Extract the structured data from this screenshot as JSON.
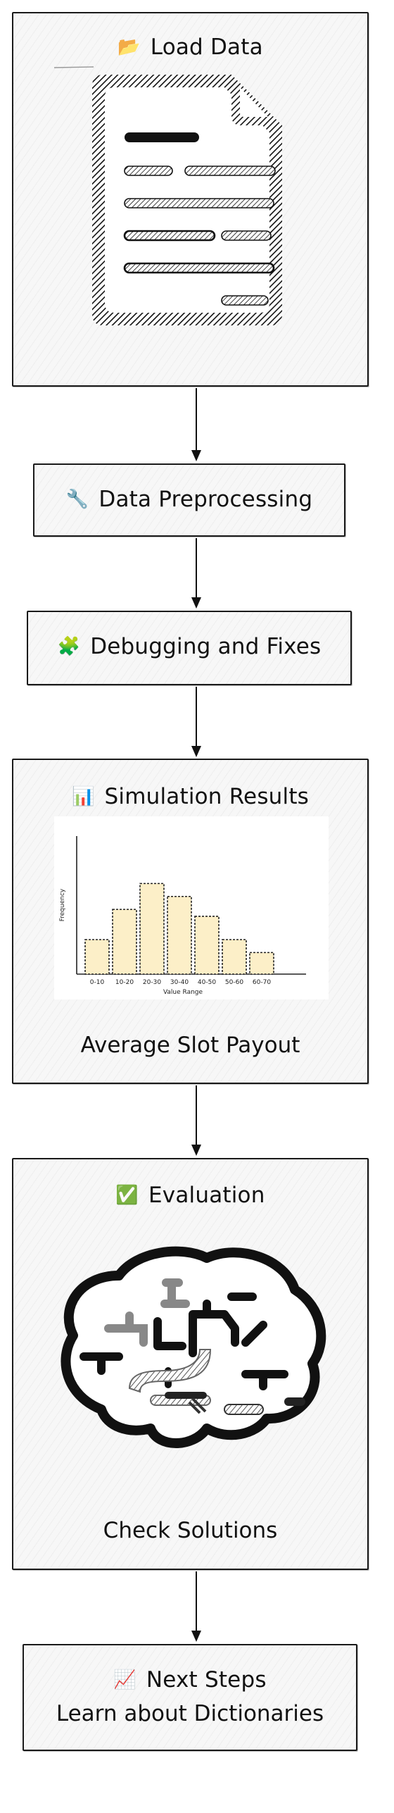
{
  "nodes": {
    "load_data": {
      "icon": "📂",
      "label": "Load Data",
      "icon_name": "folder-icon"
    },
    "preprocessing": {
      "icon": "🔧",
      "label": "Data Preprocessing",
      "icon_name": "wrench-icon"
    },
    "debugging": {
      "icon": "🧩",
      "label": "Debugging and Fixes",
      "icon_name": "puzzle-piece-icon"
    },
    "simulation": {
      "icon": "📊",
      "label": "Simulation Results",
      "caption": "Average Slot Payout",
      "icon_name": "bar-chart-icon"
    },
    "evaluation": {
      "icon": "✅",
      "label": "Evaluation",
      "caption": "Check Solutions",
      "icon_name": "check-mark-icon"
    },
    "next_steps": {
      "icon": "📈",
      "label": "Next Steps",
      "caption": "Learn about Dictionaries",
      "icon_name": "chart-increasing-icon"
    }
  },
  "illustrations": {
    "load_data": "document-icon",
    "evaluation": "brain-icon"
  },
  "colors": {
    "box_border": "#1a1a1a",
    "box_fill": "#f7f7f7",
    "bar_fill": "#fcefc8",
    "line": "#111111"
  },
  "chart_data": {
    "type": "bar",
    "categories": [
      "0-10",
      "10-20",
      "20-30",
      "30-40",
      "40-50",
      "50-60",
      "60-70"
    ],
    "values": [
      4,
      7.5,
      10.5,
      9,
      6.7,
      4,
      2.5
    ],
    "title": "",
    "xlabel": "Value Range",
    "ylabel": "Frequency",
    "ylim": [
      0,
      16
    ],
    "grid": false
  }
}
